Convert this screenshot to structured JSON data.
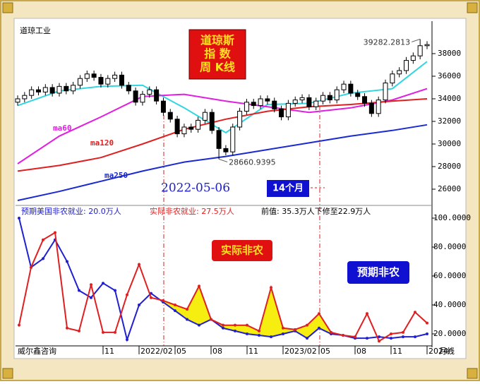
{
  "chart_data": [
    {
      "type": "candlestick",
      "title": "道琼工业",
      "badge": [
        "道琼斯",
        "指 数",
        "周 K线"
      ],
      "date_note": "2022-05-06",
      "span_note": "14个月",
      "candles": {
        "open": [
          33700,
          34000,
          34300,
          34800,
          34600,
          35000,
          34500,
          35100,
          34700,
          35200,
          35800,
          36200,
          35900,
          35300,
          35800,
          36100,
          35200,
          34700,
          33700,
          34400,
          34800,
          33800,
          32800,
          32200,
          30900,
          31500,
          31300,
          32100,
          32800,
          31200,
          29600,
          29300,
          31500,
          32900,
          33700,
          33400,
          34000,
          33800,
          33100,
          32400,
          33600,
          33900,
          34100,
          33300,
          33800,
          34300,
          33900,
          34800,
          35300,
          34500,
          34200,
          33600,
          32700,
          33900,
          35400,
          36200,
          36500,
          37400,
          37800,
          38700
        ],
        "high": [
          34300,
          34600,
          35100,
          35100,
          35300,
          35300,
          35400,
          35400,
          35500,
          36100,
          36500,
          36500,
          36200,
          36100,
          36400,
          36400,
          35500,
          35000,
          34700,
          35100,
          35100,
          34100,
          33100,
          32500,
          31800,
          31800,
          32400,
          33100,
          33100,
          31500,
          29900,
          31800,
          33200,
          34000,
          34000,
          34300,
          34300,
          34100,
          33400,
          33900,
          34200,
          34400,
          34400,
          34100,
          34600,
          34600,
          35100,
          35600,
          35600,
          34800,
          34500,
          33900,
          34200,
          35700,
          36500,
          36800,
          37700,
          38100,
          39282.2813,
          39100
        ],
        "low": [
          33400,
          33700,
          34000,
          34300,
          34300,
          34200,
          34200,
          34400,
          34400,
          34900,
          35500,
          35600,
          35000,
          35000,
          35500,
          34900,
          34400,
          33400,
          33400,
          34100,
          33500,
          32500,
          31900,
          30600,
          30600,
          31000,
          31000,
          31800,
          30900,
          28660.9395,
          29000,
          29000,
          31200,
          32600,
          33100,
          33100,
          33500,
          32800,
          32100,
          32100,
          33300,
          33600,
          33000,
          33000,
          33500,
          33600,
          33600,
          34500,
          34200,
          33900,
          33300,
          32400,
          32400,
          33600,
          35100,
          35900,
          36200,
          37100,
          37500,
          38400
        ],
        "close": [
          34000,
          34300,
          34800,
          34600,
          35000,
          34500,
          35100,
          34700,
          35200,
          35800,
          36200,
          35900,
          35300,
          35800,
          36100,
          35200,
          34700,
          33700,
          34400,
          34800,
          33800,
          32800,
          32200,
          30900,
          31500,
          31300,
          32100,
          32800,
          31200,
          29600,
          29300,
          31500,
          32900,
          33700,
          33400,
          34000,
          33800,
          33100,
          32400,
          33600,
          33900,
          34100,
          33300,
          33800,
          34300,
          33900,
          34800,
          35300,
          34500,
          34200,
          33600,
          32700,
          33900,
          35400,
          36200,
          36500,
          37400,
          37800,
          38700,
          38800
        ]
      },
      "series": [
        {
          "color": "#33d6e0",
          "x": [
            0,
            6,
            12,
            18,
            24,
            30,
            36,
            42,
            48,
            54,
            59
          ],
          "values": [
            33400,
            34700,
            35100,
            35200,
            33200,
            31000,
            33500,
            33600,
            34500,
            34900,
            37300
          ]
        },
        {
          "name": "ma60",
          "color": "#e020e0",
          "x": [
            0,
            6,
            12,
            18,
            24,
            30,
            36,
            42,
            48,
            54,
            59
          ],
          "values": [
            28250,
            30700,
            32400,
            34200,
            34400,
            33800,
            33300,
            32800,
            33200,
            33900,
            34900
          ]
        },
        {
          "name": "ma120",
          "color": "#e02020",
          "x": [
            0,
            6,
            12,
            18,
            24,
            30,
            36,
            42,
            48,
            54,
            59
          ],
          "values": [
            27600,
            28100,
            28800,
            30000,
            31300,
            32200,
            32900,
            33300,
            33500,
            33800,
            34000
          ]
        },
        {
          "name": "ma250",
          "color": "#1a2ad0",
          "x": [
            0,
            6,
            12,
            18,
            24,
            30,
            36,
            42,
            48,
            54,
            59
          ],
          "values": [
            25000,
            25800,
            26700,
            27600,
            28400,
            28900,
            29500,
            30100,
            30700,
            31200,
            31700
          ]
        }
      ],
      "ylim": [
        24625,
        40560
      ],
      "yticks": [
        26000,
        28000,
        30000,
        32000,
        34000,
        36000,
        38000
      ]
    },
    {
      "type": "line",
      "header": [
        "预期美国非农就业: 20.0万人",
        "实际非农就业: 27.5万人",
        "前值: 35.3万人下修至22.9万人"
      ],
      "categories": [
        null,
        null,
        null,
        null,
        null,
        null,
        null,
        "11",
        null,
        null,
        "2022/02",
        null,
        null,
        "05",
        null,
        null,
        "08",
        null,
        null,
        "11",
        null,
        null,
        "2023/02",
        null,
        null,
        "05",
        null,
        null,
        "08",
        null,
        null,
        "11",
        null,
        null,
        "2024/"
      ],
      "series": [
        {
          "name": "预期非农",
          "color": "#2020d0",
          "values": [
            100,
            66,
            72,
            85,
            70,
            50,
            45,
            55,
            50,
            16,
            40,
            48,
            42,
            36,
            30,
            26,
            30,
            24,
            22,
            20,
            19,
            18,
            20,
            22,
            17,
            24,
            20,
            19,
            17,
            17,
            18,
            17,
            18,
            18,
            20
          ]
        },
        {
          "name": "实际非农",
          "color": "#e02020",
          "values": [
            26,
            66,
            85,
            90,
            24,
            22,
            54,
            21,
            21,
            47,
            68,
            45,
            43,
            40,
            37,
            53,
            30,
            26,
            26,
            26,
            22,
            52,
            24,
            23,
            26,
            34,
            21,
            19,
            18,
            34,
            15,
            20,
            21,
            35,
            27.5
          ]
        }
      ],
      "fill_color": "#f5ee10",
      "ylim": [
        11.7,
        107.8
      ],
      "yticks": [
        {
          "value": 20,
          "label": "20.0000"
        },
        {
          "value": 40,
          "label": "40.0000"
        },
        {
          "value": 60,
          "label": "60.0000"
        },
        {
          "value": 80,
          "label": "80.0000"
        },
        {
          "value": 100,
          "label": "100.0000"
        }
      ],
      "source": "威尔鑫咨询",
      "period": "月线"
    }
  ]
}
